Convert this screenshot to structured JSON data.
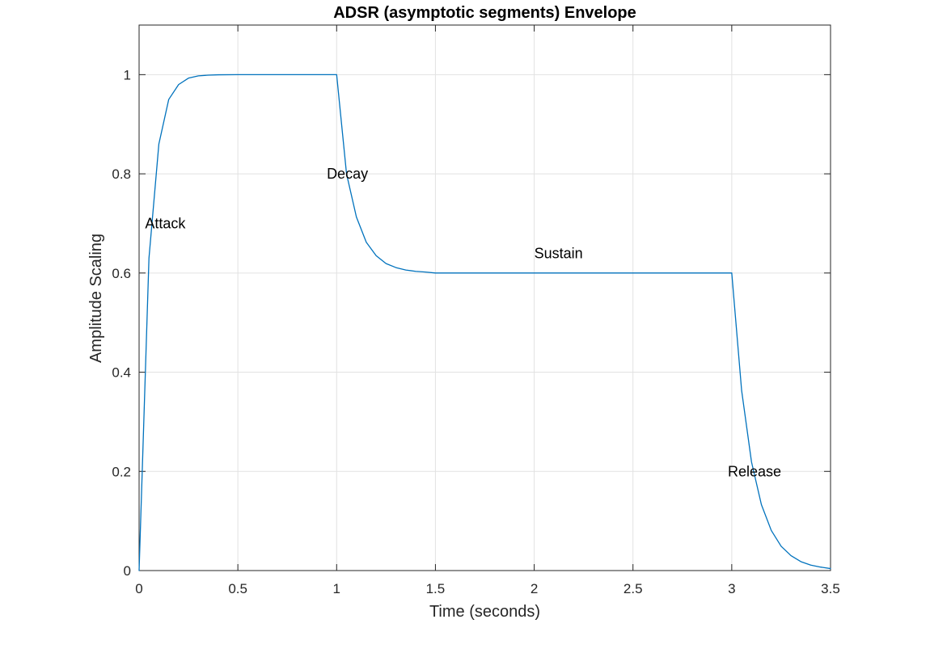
{
  "chart_data": {
    "type": "line",
    "title": "ADSR (asymptotic segments) Envelope",
    "xlabel": "Time (seconds)",
    "ylabel": "Amplitude Scaling",
    "xlim": [
      0,
      3.5
    ],
    "ylim": [
      0,
      1.1
    ],
    "xticks": [
      0,
      0.5,
      1,
      1.5,
      2,
      2.5,
      3,
      3.5
    ],
    "xtick_labels": [
      "0",
      "0.5",
      "1",
      "1.5",
      "2",
      "2.5",
      "3",
      "3.5"
    ],
    "yticks": [
      0,
      0.2,
      0.4,
      0.6,
      0.8,
      1
    ],
    "ytick_labels": [
      "0",
      "0.2",
      "0.4",
      "0.6",
      "0.8",
      "1"
    ],
    "grid": true,
    "line_color": "#0072BD",
    "series": [
      {
        "x": [
          0,
          0.05,
          0.1,
          0.15,
          0.2,
          0.25,
          0.3,
          0.35,
          0.4,
          0.5,
          0.6,
          0.7,
          0.8,
          0.9,
          1.0,
          1.05,
          1.1,
          1.15,
          1.2,
          1.25,
          1.3,
          1.35,
          1.4,
          1.45,
          1.5,
          2.0,
          2.5,
          3.0,
          3.05,
          3.1,
          3.15,
          3.2,
          3.25,
          3.3,
          3.35,
          3.4,
          3.45,
          3.5
        ],
        "y": [
          0,
          0.63,
          0.86,
          0.95,
          0.98,
          0.993,
          0.9975,
          0.999,
          0.9997,
          1,
          1,
          1,
          1,
          1,
          1,
          0.8,
          0.713,
          0.662,
          0.635,
          0.619,
          0.611,
          0.606,
          0.6034,
          0.602,
          0.6,
          0.6,
          0.6,
          0.6,
          0.363,
          0.219,
          0.133,
          0.081,
          0.049,
          0.03,
          0.018,
          0.011,
          0.007,
          0.004
        ]
      }
    ],
    "annotations": [
      {
        "text": "Attack",
        "x": 0.03,
        "y": 0.7
      },
      {
        "text": "Decay",
        "x": 0.95,
        "y": 0.8
      },
      {
        "text": "Sustain",
        "x": 2.0,
        "y": 0.64
      },
      {
        "text": "Release",
        "x": 2.98,
        "y": 0.2
      }
    ]
  }
}
